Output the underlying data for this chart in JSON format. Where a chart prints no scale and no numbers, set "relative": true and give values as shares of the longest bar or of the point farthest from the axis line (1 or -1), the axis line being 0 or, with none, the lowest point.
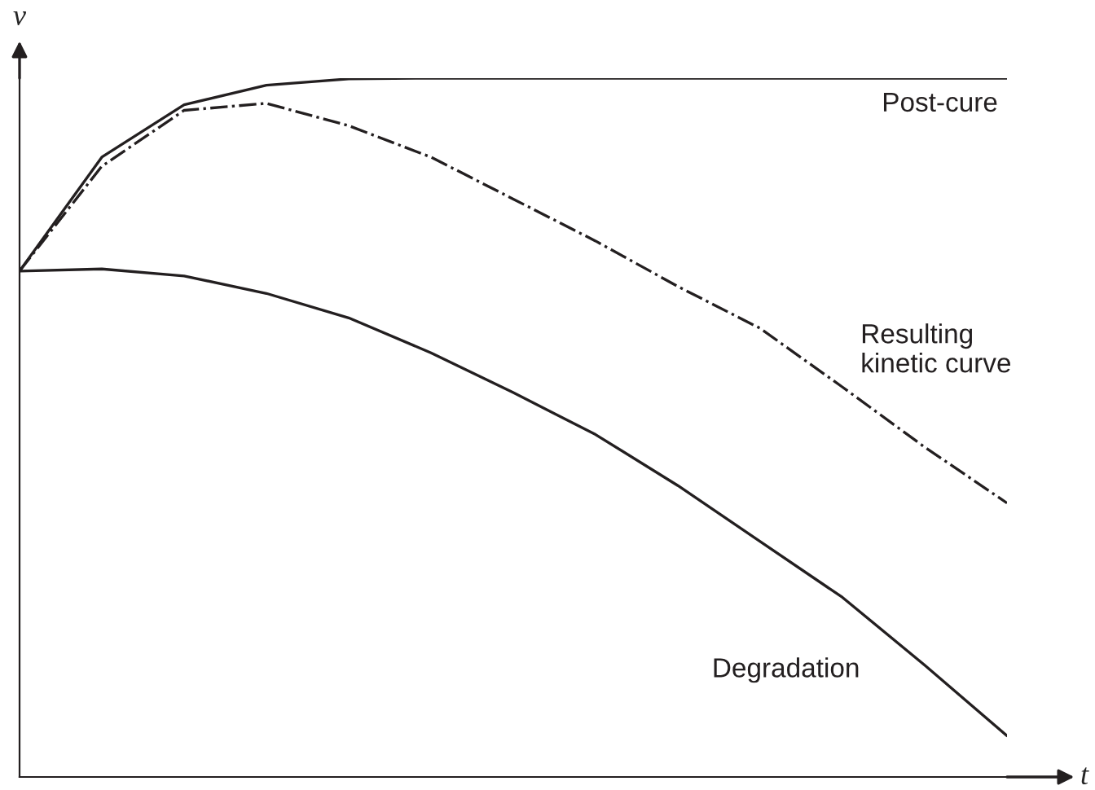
{
  "chart_data": {
    "type": "line",
    "relative": true,
    "xlabel": "t",
    "ylabel": "v",
    "categories": [
      null,
      null,
      null,
      null,
      null,
      null,
      null,
      null,
      null,
      null,
      null,
      null,
      null
    ],
    "grid": false,
    "legend": false,
    "marker": "none",
    "series": [
      {
        "name": "Post-cure",
        "color": "#231f20",
        "line_style": "solid",
        "values": [
          0.724,
          0.887,
          0.962,
          0.99,
          0.999,
          1,
          1,
          1,
          1,
          1,
          1,
          1,
          1
        ]
      },
      {
        "name": "Resulting\nkinetic curve",
        "color": "#231f20",
        "line_style": "dashdot",
        "values": [
          0.724,
          0.874,
          0.954,
          0.964,
          0.932,
          0.887,
          0.827,
          0.767,
          0.702,
          0.642,
          0.558,
          0.472,
          0.392
        ]
      },
      {
        "name": "Degradation",
        "color": "#231f20",
        "line_style": "solid",
        "values": [
          0.724,
          0.727,
          0.717,
          0.692,
          0.657,
          0.607,
          0.55,
          0.49,
          0.417,
          0.337,
          0.257,
          0.16,
          0.059
        ]
      }
    ]
  }
}
